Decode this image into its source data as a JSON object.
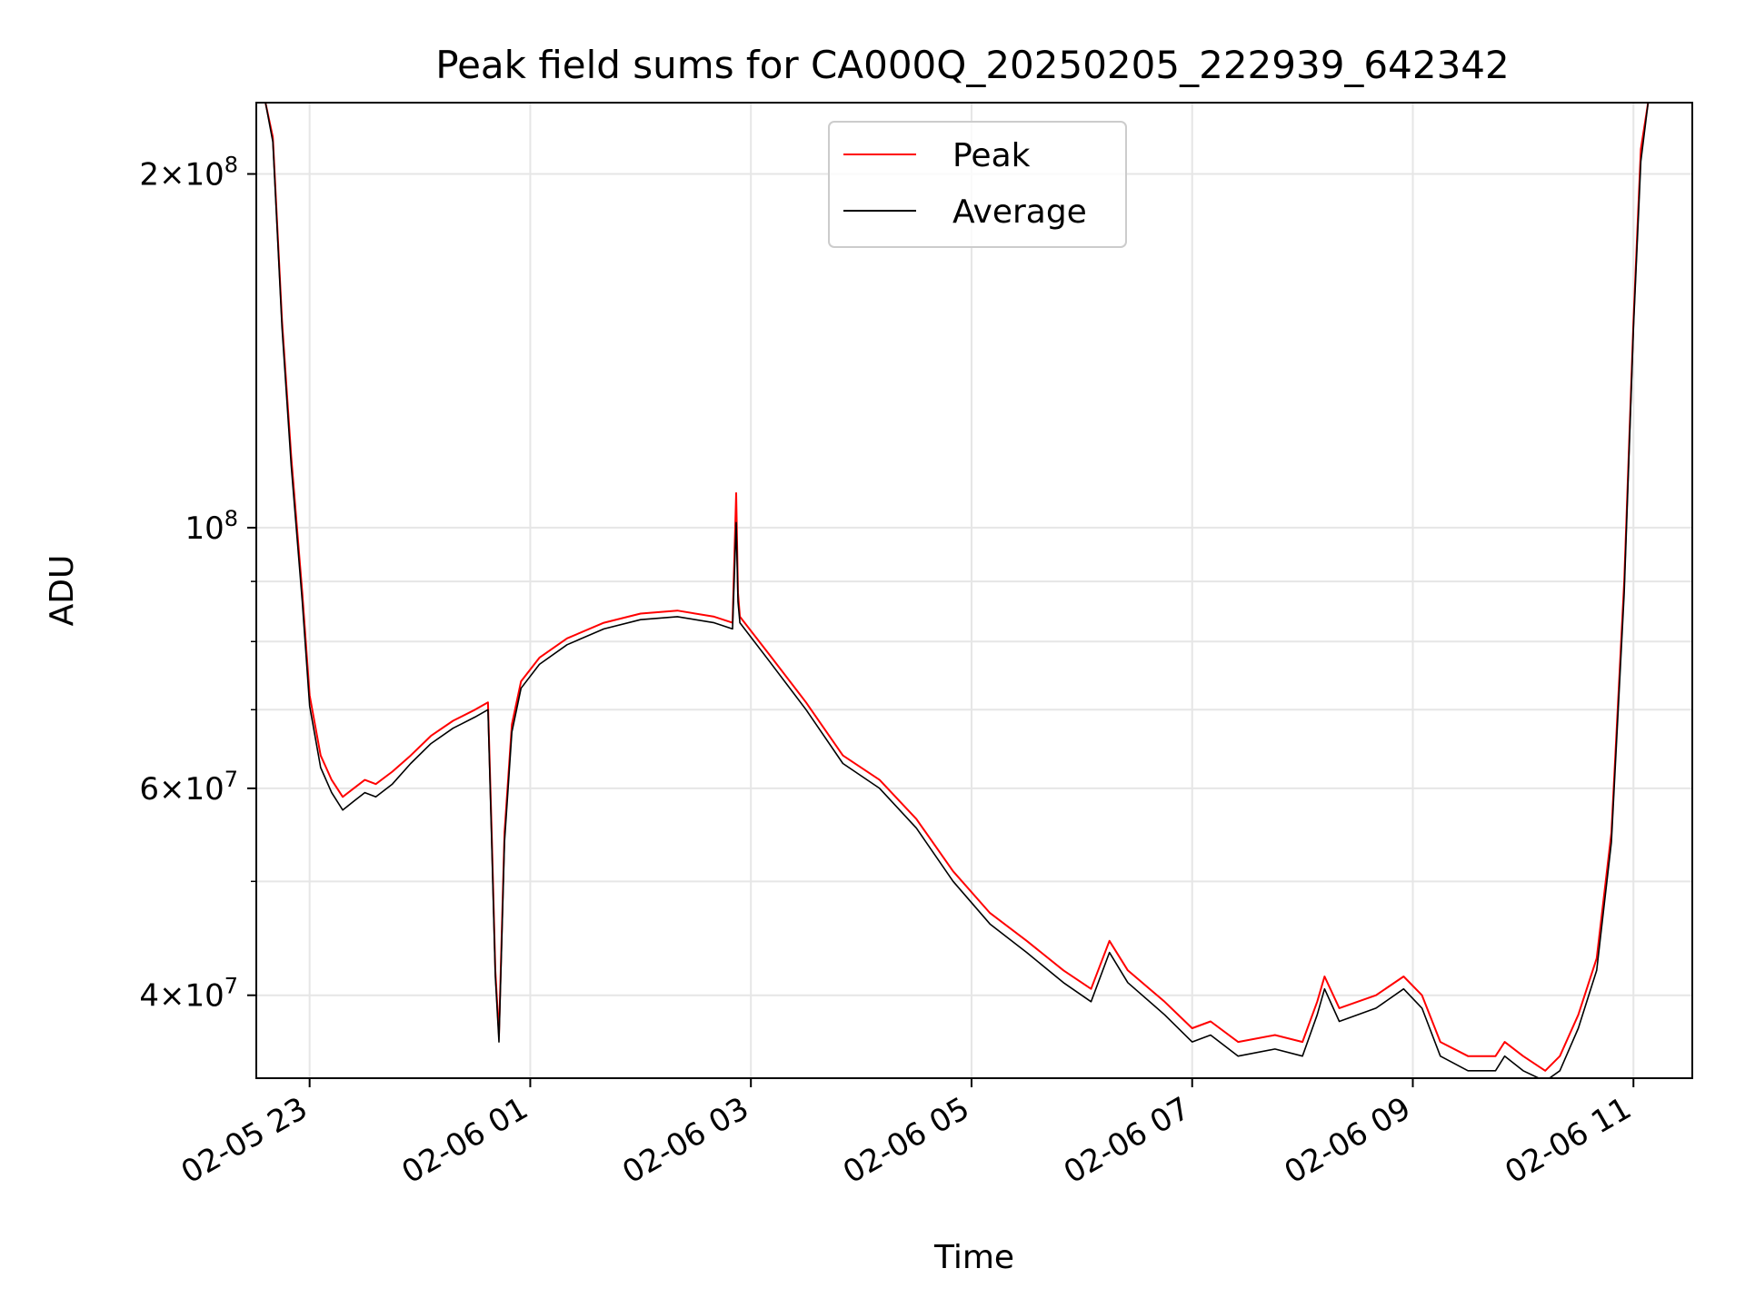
{
  "chart_data": {
    "type": "line",
    "title": "Peak field sums for CA000Q_20250205_222939_642342",
    "xlabel": "Time",
    "ylabel": "ADU",
    "yscale": "log",
    "ylim": [
      34000000,
      230000000
    ],
    "xlim": [
      "2025-02-05 22:31",
      "2025-02-06 11:32"
    ],
    "grid": true,
    "legend_position": "upper center",
    "x_ticks": [
      {
        "t": "2025-02-05 23:00",
        "label": "02-05 23"
      },
      {
        "t": "2025-02-06 01:00",
        "label": "02-06 01"
      },
      {
        "t": "2025-02-06 03:00",
        "label": "02-06 03"
      },
      {
        "t": "2025-02-06 05:00",
        "label": "02-06 05"
      },
      {
        "t": "2025-02-06 07:00",
        "label": "02-06 07"
      },
      {
        "t": "2025-02-06 09:00",
        "label": "02-06 09"
      },
      {
        "t": "2025-02-06 11:00",
        "label": "02-06 11"
      }
    ],
    "y_ticks": [
      {
        "value": 40000000,
        "base": "4",
        "sup": "7"
      },
      {
        "value": 60000000,
        "base": "6",
        "sup": "7"
      },
      {
        "value": 100000000,
        "base": "",
        "sup": "8"
      },
      {
        "value": 200000000,
        "base": "2",
        "sup": "8"
      }
    ],
    "y_minor_ticks": [
      50000000,
      70000000,
      80000000,
      90000000
    ],
    "series": [
      {
        "name": "Peak",
        "color": "#ff0000",
        "points": [
          [
            "2025-02-05 22:36",
            230000000
          ],
          [
            "2025-02-05 22:40",
            215000000
          ],
          [
            "2025-02-05 22:45",
            150000000
          ],
          [
            "2025-02-05 22:50",
            115000000
          ],
          [
            "2025-02-05 22:56",
            88000000
          ],
          [
            "2025-02-05 23:00",
            72000000
          ],
          [
            "2025-02-05 23:06",
            64000000
          ],
          [
            "2025-02-05 23:12",
            61000000
          ],
          [
            "2025-02-05 23:18",
            59000000
          ],
          [
            "2025-02-05 23:24",
            60000000
          ],
          [
            "2025-02-05 23:30",
            61000000
          ],
          [
            "2025-02-05 23:36",
            60500000
          ],
          [
            "2025-02-05 23:45",
            62000000
          ],
          [
            "2025-02-05 23:55",
            64000000
          ],
          [
            "2025-02-06 00:06",
            66500000
          ],
          [
            "2025-02-06 00:18",
            68500000
          ],
          [
            "2025-02-06 00:30",
            70000000
          ],
          [
            "2025-02-06 00:37",
            71000000
          ],
          [
            "2025-02-06 00:39",
            55000000
          ],
          [
            "2025-02-06 00:41",
            42000000
          ],
          [
            "2025-02-06 00:43",
            37000000
          ],
          [
            "2025-02-06 00:46",
            55000000
          ],
          [
            "2025-02-06 00:50",
            68000000
          ],
          [
            "2025-02-06 00:55",
            74000000
          ],
          [
            "2025-02-06 01:05",
            77500000
          ],
          [
            "2025-02-06 01:20",
            80500000
          ],
          [
            "2025-02-06 01:40",
            83000000
          ],
          [
            "2025-02-06 02:00",
            84500000
          ],
          [
            "2025-02-06 02:20",
            85000000
          ],
          [
            "2025-02-06 02:40",
            84000000
          ],
          [
            "2025-02-06 02:50",
            83000000
          ],
          [
            "2025-02-06 02:52",
            107000000
          ],
          [
            "2025-02-06 02:53",
            88000000
          ],
          [
            "2025-02-06 02:54",
            84000000
          ],
          [
            "2025-02-06 03:10",
            78000000
          ],
          [
            "2025-02-06 03:30",
            71000000
          ],
          [
            "2025-02-06 03:50",
            64000000
          ],
          [
            "2025-02-06 04:10",
            61000000
          ],
          [
            "2025-02-06 04:30",
            56500000
          ],
          [
            "2025-02-06 04:50",
            51000000
          ],
          [
            "2025-02-06 05:10",
            47000000
          ],
          [
            "2025-02-06 05:30",
            44500000
          ],
          [
            "2025-02-06 05:50",
            42000000
          ],
          [
            "2025-02-06 06:05",
            40500000
          ],
          [
            "2025-02-06 06:15",
            44500000
          ],
          [
            "2025-02-06 06:25",
            42000000
          ],
          [
            "2025-02-06 06:45",
            39500000
          ],
          [
            "2025-02-06 07:00",
            37500000
          ],
          [
            "2025-02-06 07:10",
            38000000
          ],
          [
            "2025-02-06 07:25",
            36500000
          ],
          [
            "2025-02-06 07:45",
            37000000
          ],
          [
            "2025-02-06 08:00",
            36500000
          ],
          [
            "2025-02-06 08:08",
            39500000
          ],
          [
            "2025-02-06 08:12",
            41500000
          ],
          [
            "2025-02-06 08:20",
            39000000
          ],
          [
            "2025-02-06 08:40",
            40000000
          ],
          [
            "2025-02-06 08:55",
            41500000
          ],
          [
            "2025-02-06 09:05",
            40000000
          ],
          [
            "2025-02-06 09:15",
            36500000
          ],
          [
            "2025-02-06 09:30",
            35500000
          ],
          [
            "2025-02-06 09:45",
            35500000
          ],
          [
            "2025-02-06 09:50",
            36500000
          ],
          [
            "2025-02-06 10:00",
            35500000
          ],
          [
            "2025-02-06 10:12",
            34500000
          ],
          [
            "2025-02-06 10:20",
            35500000
          ],
          [
            "2025-02-06 10:30",
            38500000
          ],
          [
            "2025-02-06 10:40",
            43000000
          ],
          [
            "2025-02-06 10:48",
            55000000
          ],
          [
            "2025-02-06 10:55",
            90000000
          ],
          [
            "2025-02-06 11:00",
            150000000
          ],
          [
            "2025-02-06 11:04",
            210000000
          ],
          [
            "2025-02-06 11:08",
            230000000
          ]
        ]
      },
      {
        "name": "Average",
        "color": "#000000",
        "points": [
          [
            "2025-02-05 22:36",
            230000000
          ],
          [
            "2025-02-05 22:40",
            213000000
          ],
          [
            "2025-02-05 22:45",
            148000000
          ],
          [
            "2025-02-05 22:50",
            113000000
          ],
          [
            "2025-02-05 22:56",
            86500000
          ],
          [
            "2025-02-05 23:00",
            70500000
          ],
          [
            "2025-02-05 23:06",
            62500000
          ],
          [
            "2025-02-05 23:12",
            59500000
          ],
          [
            "2025-02-05 23:18",
            57500000
          ],
          [
            "2025-02-05 23:24",
            58500000
          ],
          [
            "2025-02-05 23:30",
            59500000
          ],
          [
            "2025-02-05 23:36",
            59000000
          ],
          [
            "2025-02-05 23:45",
            60500000
          ],
          [
            "2025-02-05 23:55",
            63000000
          ],
          [
            "2025-02-06 00:06",
            65500000
          ],
          [
            "2025-02-06 00:18",
            67500000
          ],
          [
            "2025-02-06 00:30",
            69000000
          ],
          [
            "2025-02-06 00:37",
            70000000
          ],
          [
            "2025-02-06 00:39",
            54000000
          ],
          [
            "2025-02-06 00:41",
            41500000
          ],
          [
            "2025-02-06 00:43",
            36500000
          ],
          [
            "2025-02-06 00:46",
            54000000
          ],
          [
            "2025-02-06 00:50",
            67000000
          ],
          [
            "2025-02-06 00:55",
            73000000
          ],
          [
            "2025-02-06 01:05",
            76500000
          ],
          [
            "2025-02-06 01:20",
            79500000
          ],
          [
            "2025-02-06 01:40",
            82000000
          ],
          [
            "2025-02-06 02:00",
            83500000
          ],
          [
            "2025-02-06 02:20",
            84000000
          ],
          [
            "2025-02-06 02:40",
            83000000
          ],
          [
            "2025-02-06 02:50",
            82000000
          ],
          [
            "2025-02-06 02:52",
            101000000
          ],
          [
            "2025-02-06 02:53",
            86500000
          ],
          [
            "2025-02-06 02:54",
            83000000
          ],
          [
            "2025-02-06 03:10",
            77000000
          ],
          [
            "2025-02-06 03:30",
            70000000
          ],
          [
            "2025-02-06 03:50",
            63000000
          ],
          [
            "2025-02-06 04:10",
            60000000
          ],
          [
            "2025-02-06 04:30",
            55500000
          ],
          [
            "2025-02-06 04:50",
            50000000
          ],
          [
            "2025-02-06 05:10",
            46000000
          ],
          [
            "2025-02-06 05:30",
            43500000
          ],
          [
            "2025-02-06 05:50",
            41000000
          ],
          [
            "2025-02-06 06:05",
            39500000
          ],
          [
            "2025-02-06 06:15",
            43500000
          ],
          [
            "2025-02-06 06:25",
            41000000
          ],
          [
            "2025-02-06 06:45",
            38500000
          ],
          [
            "2025-02-06 07:00",
            36500000
          ],
          [
            "2025-02-06 07:10",
            37000000
          ],
          [
            "2025-02-06 07:25",
            35500000
          ],
          [
            "2025-02-06 07:45",
            36000000
          ],
          [
            "2025-02-06 08:00",
            35500000
          ],
          [
            "2025-02-06 08:08",
            38500000
          ],
          [
            "2025-02-06 08:12",
            40500000
          ],
          [
            "2025-02-06 08:20",
            38000000
          ],
          [
            "2025-02-06 08:40",
            39000000
          ],
          [
            "2025-02-06 08:55",
            40500000
          ],
          [
            "2025-02-06 09:05",
            39000000
          ],
          [
            "2025-02-06 09:15",
            35500000
          ],
          [
            "2025-02-06 09:30",
            34500000
          ],
          [
            "2025-02-06 09:45",
            34500000
          ],
          [
            "2025-02-06 09:50",
            35500000
          ],
          [
            "2025-02-06 10:00",
            34500000
          ],
          [
            "2025-02-06 10:12",
            33800000
          ],
          [
            "2025-02-06 10:20",
            34500000
          ],
          [
            "2025-02-06 10:30",
            37500000
          ],
          [
            "2025-02-06 10:40",
            42000000
          ],
          [
            "2025-02-06 10:48",
            54000000
          ],
          [
            "2025-02-06 10:55",
            88000000
          ],
          [
            "2025-02-06 11:00",
            148000000
          ],
          [
            "2025-02-06 11:04",
            205000000
          ],
          [
            "2025-02-06 11:08",
            230000000
          ]
        ]
      }
    ]
  }
}
